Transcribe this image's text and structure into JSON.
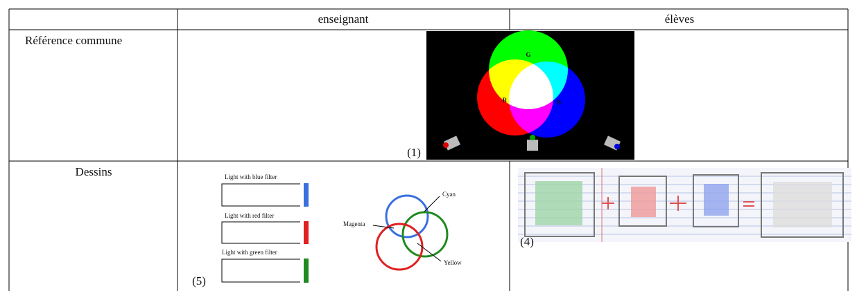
{
  "table": {
    "header": [
      "enseignant",
      "élèves"
    ],
    "rows": [
      {
        "label": "Référence commune",
        "figure": {
          "caption": "(1)",
          "labels": [
            "G",
            "R",
            "B"
          ]
        }
      },
      {
        "label": "Dessins",
        "teacher": {
          "caption": "(5)",
          "filters": [
            "Light with blue filter",
            "Light with red filter",
            "Light with green filter"
          ],
          "mixes": [
            "Cyan",
            "Magenta",
            "Yellow"
          ]
        },
        "students": {
          "caption": "(4)"
        }
      }
    ]
  }
}
